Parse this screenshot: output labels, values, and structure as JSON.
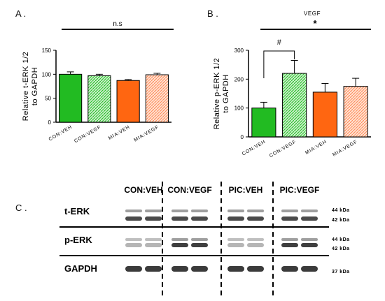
{
  "panel_labels": {
    "a": "A .",
    "b": "B .",
    "c": "C ."
  },
  "chart_data": [
    {
      "type": "bar",
      "ylabel_line1": "Relative t-ERK 1/2",
      "ylabel_line2": "to GAPDH",
      "categories": [
        "CON:VEH",
        "CON:VEGF",
        "MIA:VEH",
        "MIA:VEGF"
      ],
      "values": [
        100,
        97,
        87,
        99
      ],
      "errors": [
        5,
        3,
        2,
        3
      ],
      "ylim": [
        0,
        150
      ],
      "yticks": [
        "0",
        "50",
        "100",
        "150"
      ],
      "annotation": "n.s",
      "colors": [
        "#22bb22",
        "#22bb22",
        "#ff6611",
        "#ff9966"
      ],
      "patterns": [
        "solid",
        "hatch",
        "solid",
        "hatch"
      ]
    },
    {
      "type": "bar",
      "title": "VEGF",
      "ylabel_line1": "Relative p-ERK 1/2",
      "ylabel_line2": "to GAPDH",
      "categories": [
        "CON:VEH",
        "CON:VEGF",
        "MIA:VEH",
        "MIA:VEGF"
      ],
      "values": [
        100,
        220,
        155,
        175
      ],
      "errors": [
        20,
        45,
        30,
        28
      ],
      "ylim": [
        0,
        300
      ],
      "yticks": [
        "0",
        "100",
        "200",
        "300"
      ],
      "annotation": "*",
      "bracket_label": "#",
      "colors": [
        "#22bb22",
        "#22bb22",
        "#ff6611",
        "#ff9966"
      ],
      "patterns": [
        "solid",
        "hatch",
        "solid",
        "hatch"
      ]
    }
  ],
  "blot": {
    "group_labels": [
      "CON:VEH",
      "CON:VEGF",
      "PIC:VEH",
      "PIC:VEGF"
    ],
    "rows": [
      {
        "label": "t-ERK",
        "kda": [
          "44 kDa",
          "42 kDa"
        ]
      },
      {
        "label": "p-ERK",
        "kda": [
          "44 kDa",
          "42 kDa"
        ]
      },
      {
        "label": "GAPDH",
        "kda": [
          "37 kDa"
        ]
      }
    ]
  }
}
